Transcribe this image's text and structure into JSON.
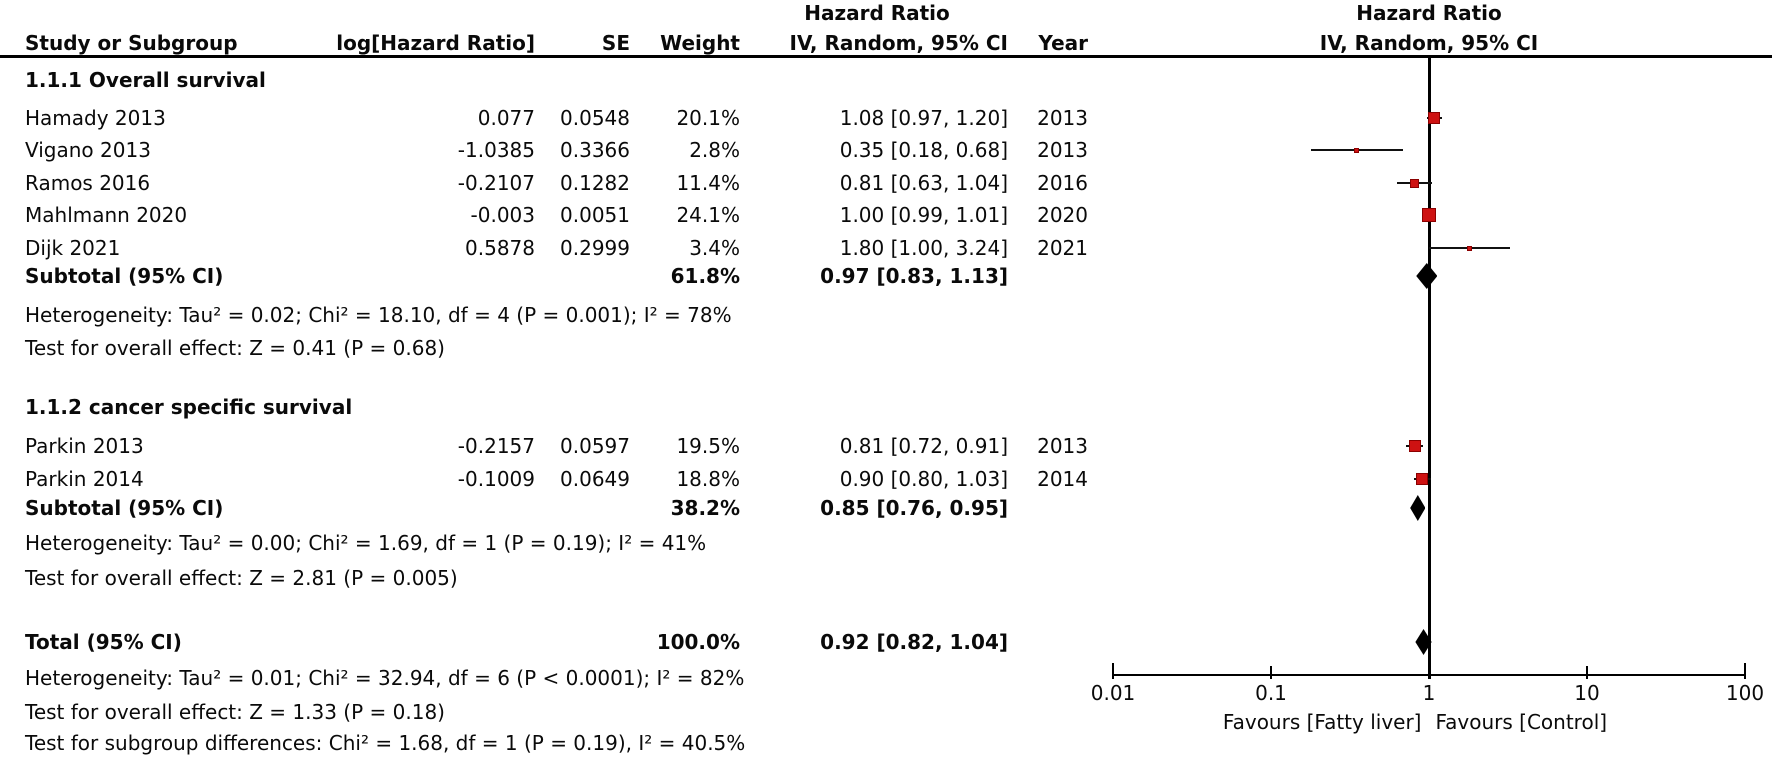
{
  "header": {
    "left_effect_title": "Hazard Ratio",
    "col_study": "Study or Subgroup",
    "col_log_hr": "log[Hazard Ratio]",
    "col_se": "SE",
    "col_weight": "Weight",
    "col_ci": "IV, Random, 95% CI",
    "col_year": "Year",
    "plot_effect_title": "Hazard Ratio",
    "plot_model": "IV, Random, 95% CI"
  },
  "colors": {
    "marker_fill": "#CE1212",
    "marker_border": "#8B0000",
    "diamond": "#000000",
    "line": "#111111",
    "text": "#0a0a0a",
    "background": "#ffffff"
  },
  "chart_data": {
    "type": "forest",
    "effect_measure": "Hazard Ratio",
    "model": "IV, Random, 95% CI",
    "x_axis": {
      "scale": "log",
      "ticks": [
        0.01,
        0.1,
        1,
        10,
        100
      ],
      "tick_labels": [
        "0.01",
        "0.1",
        "1",
        "10",
        "100"
      ],
      "left_label": "Favours [Fatty liver]",
      "right_label": "Favours [Control]"
    },
    "rows": [
      {
        "kind": "section",
        "label": "1.1.1 Overall survival"
      },
      {
        "kind": "study",
        "label": "Hamady 2013",
        "log_hr": "0.077",
        "se": "0.0548",
        "weight": "20.1%",
        "ci_text": "1.08 [0.97, 1.20]",
        "year": "2013",
        "hr": 1.08,
        "lo": 0.97,
        "hi": 1.2,
        "w": 20.1
      },
      {
        "kind": "study",
        "label": "Vigano 2013",
        "log_hr": "-1.0385",
        "se": "0.3366",
        "weight": "2.8%",
        "ci_text": "0.35 [0.18, 0.68]",
        "year": "2013",
        "hr": 0.35,
        "lo": 0.18,
        "hi": 0.68,
        "w": 2.8
      },
      {
        "kind": "study",
        "label": "Ramos 2016",
        "log_hr": "-0.2107",
        "se": "0.1282",
        "weight": "11.4%",
        "ci_text": "0.81 [0.63, 1.04]",
        "year": "2016",
        "hr": 0.81,
        "lo": 0.63,
        "hi": 1.04,
        "w": 11.4
      },
      {
        "kind": "study",
        "label": "Mahlmann 2020",
        "log_hr": "-0.003",
        "se": "0.0051",
        "weight": "24.1%",
        "ci_text": "1.00 [0.99, 1.01]",
        "year": "2020",
        "hr": 1.0,
        "lo": 0.99,
        "hi": 1.01,
        "w": 24.1
      },
      {
        "kind": "study",
        "label": "Dijk 2021",
        "log_hr": "0.5878",
        "se": "0.2999",
        "weight": "3.4%",
        "ci_text": "1.80 [1.00, 3.24]",
        "year": "2021",
        "hr": 1.8,
        "lo": 1.0,
        "hi": 3.24,
        "w": 3.4
      },
      {
        "kind": "subtotal",
        "label": "Subtotal (95% CI)",
        "weight": "61.8%",
        "ci_text": "0.97 [0.83, 1.13]",
        "hr": 0.97,
        "lo": 0.83,
        "hi": 1.13
      },
      {
        "kind": "note",
        "label": "Heterogeneity: Tau² = 0.02; Chi² = 18.10, df = 4 (P = 0.001); I² = 78%"
      },
      {
        "kind": "note",
        "label": "Test for overall effect: Z = 0.41 (P = 0.68)"
      },
      {
        "kind": "section",
        "label": "1.1.2 cancer specific survival"
      },
      {
        "kind": "study",
        "label": "Parkin 2013",
        "log_hr": "-0.2157",
        "se": "0.0597",
        "weight": "19.5%",
        "ci_text": "0.81 [0.72, 0.91]",
        "year": "2013",
        "hr": 0.81,
        "lo": 0.72,
        "hi": 0.91,
        "w": 19.5
      },
      {
        "kind": "study",
        "label": "Parkin 2014",
        "log_hr": "-0.1009",
        "se": "0.0649",
        "weight": "18.8%",
        "ci_text": "0.90 [0.80, 1.03]",
        "year": "2014",
        "hr": 0.9,
        "lo": 0.8,
        "hi": 1.03,
        "w": 18.8
      },
      {
        "kind": "subtotal",
        "label": "Subtotal (95% CI)",
        "weight": "38.2%",
        "ci_text": "0.85 [0.76, 0.95]",
        "hr": 0.85,
        "lo": 0.76,
        "hi": 0.95
      },
      {
        "kind": "note",
        "label": "Heterogeneity: Tau² = 0.00; Chi² = 1.69, df = 1 (P = 0.19); I² = 41%"
      },
      {
        "kind": "note",
        "label": "Test for overall effect: Z = 2.81 (P = 0.005)"
      },
      {
        "kind": "subtotal",
        "label": "Total (95% CI)",
        "weight": "100.0%",
        "ci_text": "0.92 [0.82, 1.04]",
        "hr": 0.92,
        "lo": 0.82,
        "hi": 1.04
      },
      {
        "kind": "note",
        "label": "Heterogeneity: Tau² = 0.01; Chi² = 32.94, df = 6 (P < 0.0001); I² = 82%"
      },
      {
        "kind": "note",
        "label": "Test for overall effect: Z = 1.33 (P = 0.18)"
      },
      {
        "kind": "note",
        "label": "Test for subgroup differences: Chi² = 1.68, df = 1 (P = 0.19), I² = 40.5%"
      }
    ]
  }
}
